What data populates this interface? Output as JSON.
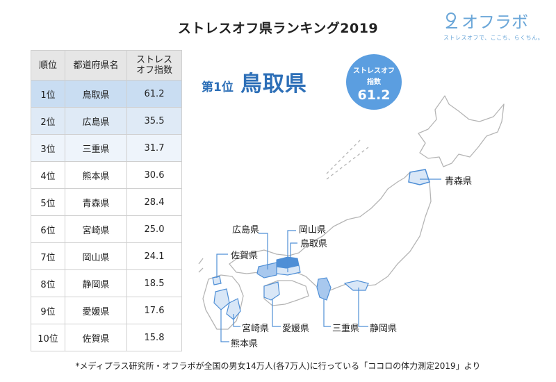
{
  "title": "ストレスオフ県ランキング2019",
  "logo": {
    "name": "オフラボ",
    "tagline": "ストレスオフで、ここち、らくちん。"
  },
  "table": {
    "headers": [
      "順位",
      "都道府県名",
      "ストレス\nオフ指数"
    ],
    "rows": [
      {
        "rank": "1位",
        "pref": "鳥取県",
        "index": "61.2"
      },
      {
        "rank": "2位",
        "pref": "広島県",
        "index": "35.5"
      },
      {
        "rank": "3位",
        "pref": "三重県",
        "index": "31.7"
      },
      {
        "rank": "4位",
        "pref": "熊本県",
        "index": "30.6"
      },
      {
        "rank": "5位",
        "pref": "青森県",
        "index": "28.4"
      },
      {
        "rank": "6位",
        "pref": "宮崎県",
        "index": "25.0"
      },
      {
        "rank": "7位",
        "pref": "岡山県",
        "index": "24.1"
      },
      {
        "rank": "8位",
        "pref": "静岡県",
        "index": "18.5"
      },
      {
        "rank": "9位",
        "pref": "愛媛県",
        "index": "17.6"
      },
      {
        "rank": "10位",
        "pref": "佐賀県",
        "index": "15.8"
      }
    ]
  },
  "highlight": {
    "rank_label": "第1位",
    "pref": "鳥取県",
    "bubble_line1": "ストレスオフ",
    "bubble_line2": "指数",
    "bubble_value": "61.2"
  },
  "map_labels": {
    "aomori": "青森県",
    "hiroshima": "広島県",
    "okayama": "岡山県",
    "tottori": "鳥取県",
    "saga": "佐賀県",
    "miyazaki": "宮崎県",
    "ehime": "愛媛県",
    "mie": "三重県",
    "shizuoka": "静岡県",
    "kumamoto": "熊本県"
  },
  "colors": {
    "accent": "#5b9ee0",
    "highlight_fill": "#a8c8ee",
    "dark_fill": "#4f8fd6",
    "map_stroke": "#b5b5b5"
  },
  "footnote": "*メディプラス研究所・オフラボが全国の男女14万人(各7万人)に行っている「ココロの体力測定2019」より"
}
